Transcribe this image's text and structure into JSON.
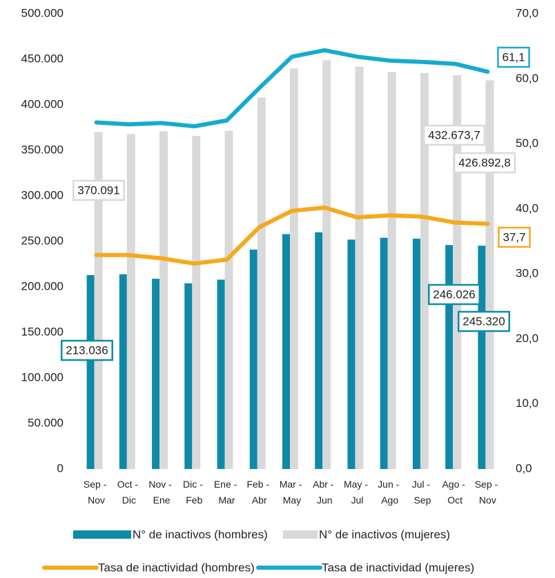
{
  "chart_data": {
    "type": "bar",
    "categories": [
      "Sep - Nov",
      "Oct - Dic",
      "Nov - Ene",
      "Dic - Feb",
      "Ene - Mar",
      "Feb - Abr",
      "Mar - May",
      "Abr - Jun",
      "May - Jul",
      "Jun - Ago",
      "Jul - Sep",
      "Ago - Oct",
      "Sep - Nov"
    ],
    "ylim": [
      0,
      500000
    ],
    "yticks": [
      {
        "value": 0,
        "label": "0"
      },
      {
        "value": 50000,
        "label": "50.000"
      },
      {
        "value": 100000,
        "label": "100.000"
      },
      {
        "value": 150000,
        "label": "150.000"
      },
      {
        "value": 200000,
        "label": "200.000"
      },
      {
        "value": 250000,
        "label": "250.000"
      },
      {
        "value": 300000,
        "label": "300.000"
      },
      {
        "value": 350000,
        "label": "350.000"
      },
      {
        "value": 400000,
        "label": "400.000"
      },
      {
        "value": 450000,
        "label": "450.000"
      },
      {
        "value": 500000,
        "label": "500.000"
      }
    ],
    "y2lim": [
      0,
      70
    ],
    "y2ticks": [
      {
        "value": 0,
        "label": "0,0"
      },
      {
        "value": 10,
        "label": "10,0"
      },
      {
        "value": 20,
        "label": "20,0"
      },
      {
        "value": 30,
        "label": "30,0"
      },
      {
        "value": 40,
        "label": "40,0"
      },
      {
        "value": 50,
        "label": "50,0"
      },
      {
        "value": 60,
        "label": "60,0"
      },
      {
        "value": 70,
        "label": "70,0"
      }
    ],
    "grid": false,
    "legend": "bottom",
    "series": [
      {
        "name": "N° de inactivos (hombres)",
        "type": "bar",
        "color": "#0e8aa8",
        "values": [
          213036,
          214000,
          209000,
          204000,
          208000,
          241000,
          258000,
          260000,
          252000,
          254000,
          253000,
          246026,
          245320
        ],
        "value_labels": [
          "213.036",
          null,
          null,
          null,
          null,
          null,
          null,
          null,
          null,
          null,
          null,
          "246.026",
          "245.320"
        ]
      },
      {
        "name": "N° de inactivos (mujeres)",
        "type": "bar",
        "color": "#d9d9d9",
        "values": [
          370091,
          368000,
          371000,
          366000,
          371500,
          408000,
          440000,
          449000,
          442000,
          436000,
          435000,
          432673.7,
          426892.8
        ],
        "value_labels": [
          "370.091",
          null,
          null,
          null,
          null,
          null,
          null,
          null,
          null,
          null,
          null,
          "432.673,7",
          "426.892,8"
        ]
      },
      {
        "name": "Tasa de inactividad (hombres)",
        "type": "line",
        "axis": "y2",
        "color": "#f5a91d",
        "values": [
          32.9,
          32.9,
          32.4,
          31.6,
          32.2,
          37.2,
          39.7,
          40.2,
          38.7,
          39.0,
          38.8,
          37.9,
          37.7
        ],
        "value_labels": [
          null,
          null,
          null,
          null,
          null,
          null,
          null,
          null,
          null,
          null,
          null,
          null,
          "37,7"
        ]
      },
      {
        "name": "Tasa de inactividad (mujeres)",
        "type": "line",
        "axis": "y2",
        "color": "#17aacf",
        "values": [
          53.3,
          53.0,
          53.2,
          52.7,
          53.6,
          58.6,
          63.4,
          64.4,
          63.4,
          62.8,
          62.6,
          62.3,
          61.1
        ],
        "value_labels": [
          null,
          null,
          null,
          null,
          null,
          null,
          null,
          null,
          null,
          null,
          null,
          null,
          "61,1"
        ]
      }
    ]
  }
}
